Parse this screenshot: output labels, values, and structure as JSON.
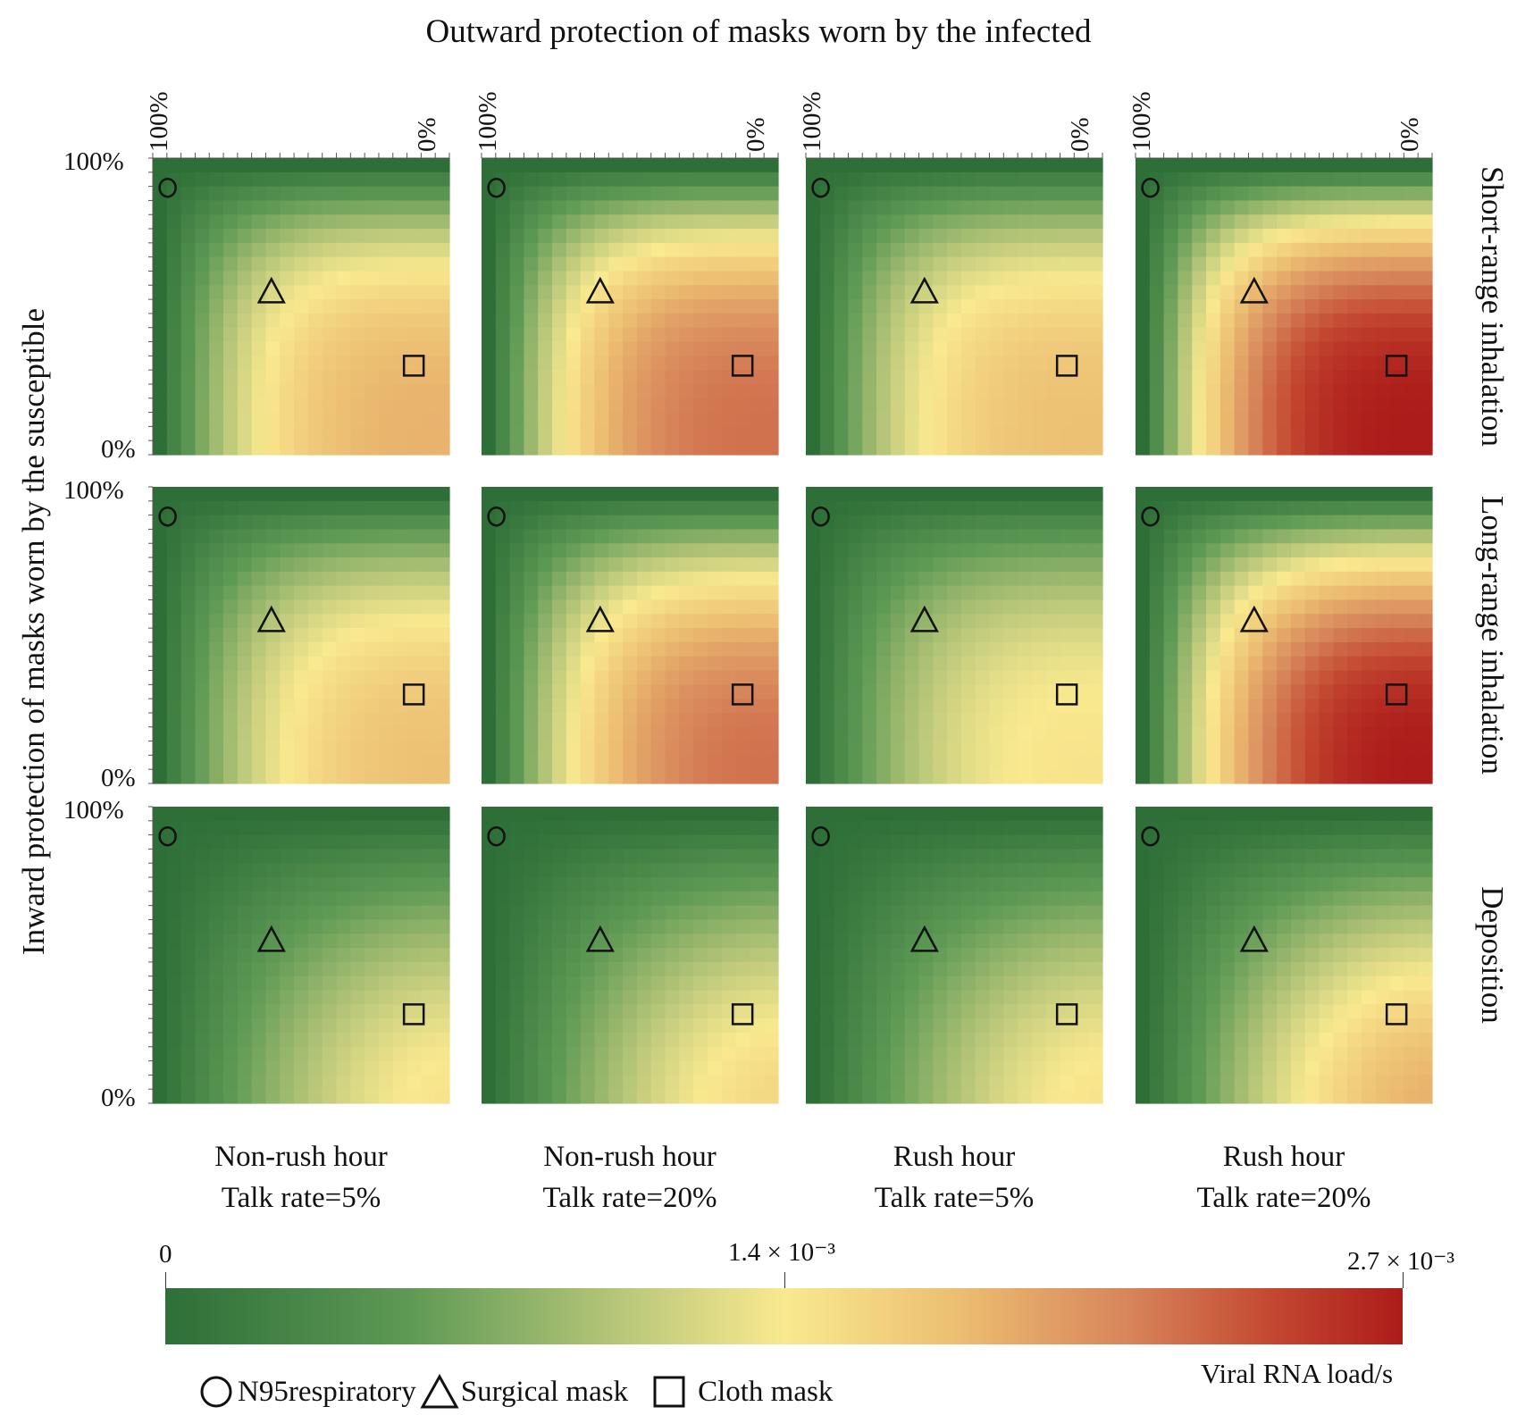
{
  "chart_data": {
    "type": "heatmap",
    "title": "Outward protection of masks worn by the infected",
    "ylabel": "Inward protection of masks worn by the the susceptible",
    "x_axis": {
      "label": "Outward protection of masks worn by the infected",
      "tick_labels": [
        "100%",
        "0%"
      ],
      "range": [
        100,
        0
      ]
    },
    "y_axis": {
      "label": "Inward protection of masks worn by the susceptible",
      "tick_labels": [
        "100%",
        "0%"
      ],
      "range": [
        0,
        100
      ]
    },
    "columns": [
      {
        "line1": "Non-rush hour",
        "line2": "Talk rate=5%"
      },
      {
        "line1": "Non-rush hour",
        "line2": "Talk rate=20%"
      },
      {
        "line1": "Rush hour",
        "line2": "Talk rate=5%"
      },
      {
        "line1": "Rush hour",
        "line2": "Talk rate=20%"
      }
    ],
    "rows": [
      "Short-range inhalation",
      "Long-range inhalation",
      "Deposition"
    ],
    "grid_cells": 21,
    "peak_values_at_0pct_0pct": [
      [
        0.0018,
        0.0022,
        0.0017,
        0.0027
      ],
      [
        0.0017,
        0.0022,
        0.0014,
        0.0027
      ],
      [
        0.0014,
        0.0015,
        0.0014,
        0.0018
      ]
    ],
    "colorbar": {
      "label": "Viral RNA load/s",
      "range": [
        0,
        0.0027
      ],
      "ticks": [
        "0",
        "1.4 × 10⁻³",
        "2.7 × 10⁻³"
      ],
      "colors": [
        "#2e6f38",
        "#f9e98f",
        "#ac1c1a"
      ]
    },
    "markers": [
      {
        "name": "N95respiratory",
        "shape": "circle",
        "outward_pct": 95,
        "inward_pct": 90
      },
      {
        "name": "Surgical mask",
        "shape": "triangle",
        "outward_pct": 60,
        "inward_pct": 55
      },
      {
        "name": "Cloth mask",
        "shape": "square",
        "outward_pct": 12,
        "inward_pct": 30
      }
    ]
  }
}
